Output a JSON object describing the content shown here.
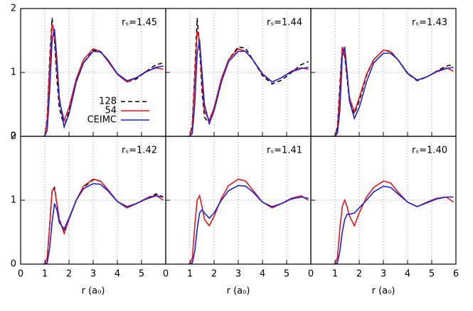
{
  "chart_data": [
    {
      "type": "line",
      "annotation": "rₛ=1.45",
      "xlim": [
        0,
        6
      ],
      "ylim": [
        0,
        2
      ],
      "xticks": [
        0,
        1,
        2,
        3,
        4,
        5
      ],
      "yticks": [
        0,
        1,
        2
      ],
      "xtick_labels": false,
      "ytick_labels": true,
      "grid": true,
      "legend": "center",
      "x": [
        0.9,
        1.0,
        1.1,
        1.2,
        1.3,
        1.4,
        1.5,
        1.6,
        1.8,
        2.0,
        2.3,
        2.6,
        3.0,
        3.3,
        3.6,
        4.0,
        4.4,
        4.8,
        5.2,
        5.6,
        5.9
      ],
      "series": [
        {
          "name": "128",
          "color": "#000000",
          "dashed": true,
          "values": [
            0,
            0,
            0.3,
            1.2,
            1.85,
            1.5,
            0.9,
            0.45,
            0.15,
            0.4,
            0.85,
            1.15,
            1.35,
            1.33,
            1.2,
            0.97,
            0.85,
            0.9,
            1.02,
            1.12,
            1.15
          ]
        },
        {
          "name": "54",
          "color": "#e8141c",
          "dashed": false,
          "values": [
            0,
            0,
            0.25,
            1.1,
            1.75,
            1.6,
            1.05,
            0.55,
            0.25,
            0.45,
            0.9,
            1.2,
            1.37,
            1.33,
            1.18,
            0.97,
            0.85,
            0.92,
            1.02,
            1.07,
            1.05
          ]
        },
        {
          "name": "CEIMC",
          "color": "#1c22d8",
          "dashed": false,
          "values": [
            0,
            0,
            0.1,
            0.7,
            1.5,
            1.68,
            1.2,
            0.6,
            0.15,
            0.35,
            0.85,
            1.15,
            1.33,
            1.32,
            1.2,
            0.98,
            0.87,
            0.92,
            1.01,
            1.08,
            1.1
          ]
        }
      ]
    },
    {
      "type": "line",
      "annotation": "rₛ=1.44",
      "xlim": [
        0,
        6
      ],
      "ylim": [
        0,
        2
      ],
      "xticks": [
        0,
        1,
        2,
        3,
        4,
        5
      ],
      "yticks": [
        0,
        1,
        2
      ],
      "xtick_labels": false,
      "ytick_labels": false,
      "grid": true,
      "x": [
        0.9,
        1.0,
        1.1,
        1.2,
        1.3,
        1.4,
        1.5,
        1.6,
        1.8,
        2.0,
        2.3,
        2.6,
        3.0,
        3.3,
        3.6,
        4.0,
        4.4,
        4.8,
        5.2,
        5.6,
        5.9
      ],
      "series": [
        {
          "name": "128",
          "color": "#000000",
          "dashed": true,
          "values": [
            0,
            0,
            0.2,
            1.0,
            1.85,
            1.4,
            0.7,
            0.3,
            0.2,
            0.4,
            0.85,
            1.2,
            1.4,
            1.38,
            1.2,
            0.95,
            0.82,
            0.88,
            1.0,
            1.12,
            1.17
          ]
        },
        {
          "name": "54",
          "color": "#e8141c",
          "dashed": false,
          "values": [
            0,
            0,
            0.15,
            0.9,
            1.65,
            1.5,
            0.85,
            0.4,
            0.25,
            0.45,
            0.9,
            1.2,
            1.37,
            1.33,
            1.2,
            0.97,
            0.85,
            0.92,
            1.02,
            1.07,
            1.05
          ]
        },
        {
          "name": "CEIMC",
          "color": "#1c22d8",
          "dashed": false,
          "values": [
            0,
            0,
            0.05,
            0.5,
            1.3,
            1.5,
            1.0,
            0.5,
            0.2,
            0.4,
            0.85,
            1.17,
            1.33,
            1.33,
            1.2,
            0.98,
            0.85,
            0.92,
            1.01,
            1.06,
            1.08
          ]
        }
      ]
    },
    {
      "type": "line",
      "annotation": "rₛ=1.43",
      "xlim": [
        0,
        6
      ],
      "ylim": [
        0,
        2
      ],
      "xticks": [
        0,
        1,
        2,
        3,
        4,
        5,
        6
      ],
      "yticks": [
        0,
        1,
        2
      ],
      "xtick_labels": false,
      "ytick_labels": false,
      "grid": true,
      "x": [
        0.9,
        1.0,
        1.1,
        1.2,
        1.3,
        1.4,
        1.5,
        1.6,
        1.8,
        2.0,
        2.3,
        2.6,
        3.0,
        3.3,
        3.6,
        4.0,
        4.4,
        4.8,
        5.2,
        5.6,
        5.9
      ],
      "series": [
        {
          "name": "128",
          "color": "#000000",
          "dashed": true,
          "values": [
            0,
            0,
            0.15,
            0.8,
            1.4,
            1.25,
            0.9,
            0.55,
            0.35,
            0.55,
            0.95,
            1.2,
            1.35,
            1.33,
            1.2,
            0.98,
            0.87,
            0.93,
            1.02,
            1.1,
            1.12
          ]
        },
        {
          "name": "54",
          "color": "#e8141c",
          "dashed": false,
          "values": [
            0,
            0,
            0.1,
            0.7,
            1.4,
            1.3,
            0.95,
            0.6,
            0.38,
            0.6,
            0.97,
            1.2,
            1.35,
            1.32,
            1.2,
            0.98,
            0.88,
            0.93,
            1.02,
            1.07,
            1.02
          ]
        },
        {
          "name": "CEIMC",
          "color": "#1c22d8",
          "dashed": false,
          "values": [
            0,
            0,
            0.05,
            0.4,
            1.25,
            1.4,
            1.0,
            0.55,
            0.28,
            0.45,
            0.85,
            1.15,
            1.3,
            1.3,
            1.2,
            0.99,
            0.88,
            0.93,
            1.01,
            1.06,
            1.08
          ]
        }
      ]
    },
    {
      "type": "line",
      "annotation": "rₛ=1.42",
      "xlabel": "r (a₀)",
      "xlim": [
        0,
        6
      ],
      "ylim": [
        0,
        2
      ],
      "xticks": [
        0,
        1,
        2,
        3,
        4,
        5
      ],
      "yticks": [
        0,
        1,
        2
      ],
      "xtick_labels": true,
      "ytick_labels": true,
      "grid": true,
      "x": [
        0.9,
        1.0,
        1.1,
        1.2,
        1.3,
        1.4,
        1.5,
        1.6,
        1.8,
        2.0,
        2.3,
        2.6,
        3.0,
        3.3,
        3.6,
        4.0,
        4.4,
        4.8,
        5.2,
        5.6,
        5.9
      ],
      "series": [
        {
          "name": "128",
          "color": "#000000",
          "dashed": true,
          "values": [
            0,
            0,
            0.1,
            0.6,
            1.15,
            1.2,
            0.95,
            0.7,
            0.5,
            0.7,
            1.0,
            1.2,
            1.32,
            1.3,
            1.17,
            0.98,
            0.88,
            0.95,
            1.03,
            1.1,
            1.05
          ]
        },
        {
          "name": "54",
          "color": "#e8141c",
          "dashed": false,
          "values": [
            0,
            0,
            0.1,
            0.6,
            1.15,
            1.18,
            0.95,
            0.7,
            0.48,
            0.7,
            1.0,
            1.22,
            1.33,
            1.3,
            1.17,
            0.98,
            0.88,
            0.95,
            1.03,
            1.08,
            1.0
          ]
        },
        {
          "name": "CEIMC",
          "color": "#1c22d8",
          "dashed": false,
          "values": [
            0,
            0,
            0.02,
            0.25,
            0.65,
            0.95,
            0.85,
            0.65,
            0.55,
            0.72,
            1.0,
            1.18,
            1.26,
            1.25,
            1.15,
            0.98,
            0.9,
            0.95,
            1.02,
            1.07,
            1.05
          ]
        }
      ]
    },
    {
      "type": "line",
      "annotation": "rₛ=1.41",
      "xlabel": "r (a₀)",
      "xlim": [
        0,
        6
      ],
      "ylim": [
        0,
        2
      ],
      "xticks": [
        0,
        1,
        2,
        3,
        4,
        5
      ],
      "yticks": [
        0,
        1,
        2
      ],
      "xtick_labels": true,
      "ytick_labels": false,
      "grid": true,
      "x": [
        0.9,
        1.0,
        1.1,
        1.2,
        1.3,
        1.4,
        1.5,
        1.6,
        1.8,
        2.0,
        2.3,
        2.6,
        3.0,
        3.3,
        3.6,
        4.0,
        4.4,
        4.8,
        5.2,
        5.6,
        5.9
      ],
      "series": [
        {
          "name": "54",
          "color": "#e8141c",
          "dashed": false,
          "values": [
            0,
            0,
            0.1,
            0.6,
            1.0,
            1.07,
            0.9,
            0.7,
            0.6,
            0.75,
            1.03,
            1.23,
            1.33,
            1.3,
            1.16,
            0.97,
            0.88,
            0.95,
            1.03,
            1.07,
            1.0
          ]
        },
        {
          "name": "CEIMC",
          "color": "#1c22d8",
          "dashed": false,
          "values": [
            0,
            0,
            0.02,
            0.2,
            0.55,
            0.8,
            0.85,
            0.8,
            0.72,
            0.8,
            1.0,
            1.15,
            1.23,
            1.22,
            1.13,
            0.97,
            0.9,
            0.95,
            1.02,
            1.05,
            1.03
          ]
        }
      ]
    },
    {
      "type": "line",
      "annotation": "rₛ=1.40",
      "xlabel": "r (a₀)",
      "xlim": [
        0,
        6
      ],
      "ylim": [
        0,
        2
      ],
      "xticks": [
        0,
        1,
        2,
        3,
        4,
        5,
        6
      ],
      "yticks": [
        0,
        1,
        2
      ],
      "xtick_labels": true,
      "ytick_labels": false,
      "grid": true,
      "x": [
        0.9,
        1.0,
        1.1,
        1.2,
        1.3,
        1.4,
        1.5,
        1.6,
        1.8,
        2.0,
        2.3,
        2.6,
        3.0,
        3.3,
        3.6,
        4.0,
        4.4,
        4.8,
        5.2,
        5.6,
        5.9
      ],
      "series": [
        {
          "name": "54",
          "color": "#e8141c",
          "dashed": false,
          "values": [
            0,
            0,
            0.1,
            0.55,
            0.9,
            1.0,
            0.9,
            0.75,
            0.6,
            0.8,
            1.05,
            1.2,
            1.3,
            1.27,
            1.13,
            0.97,
            0.9,
            0.97,
            1.03,
            1.05,
            0.97
          ]
        },
        {
          "name": "CEIMC",
          "color": "#1c22d8",
          "dashed": false,
          "values": [
            0,
            0,
            0.02,
            0.2,
            0.5,
            0.7,
            0.78,
            0.78,
            0.8,
            0.88,
            1.0,
            1.13,
            1.22,
            1.2,
            1.1,
            0.97,
            0.9,
            0.96,
            1.02,
            1.05,
            1.05
          ]
        }
      ]
    }
  ]
}
